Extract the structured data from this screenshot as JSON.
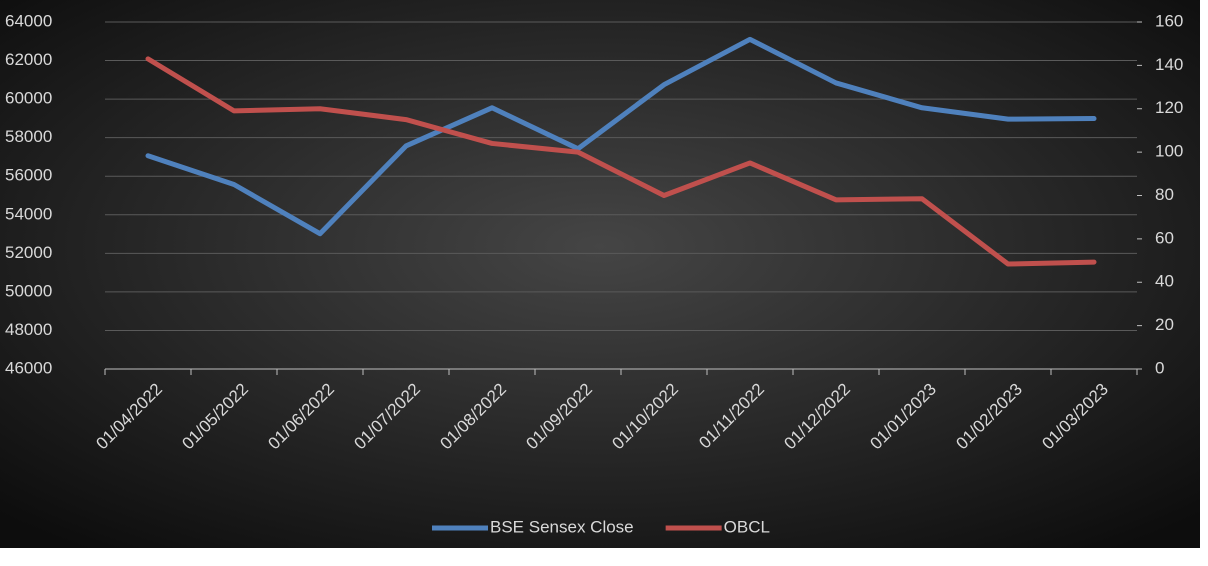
{
  "chart_data": {
    "type": "line",
    "categories": [
      "01/04/2022",
      "01/05/2022",
      "01/06/2022",
      "01/07/2022",
      "01/08/2022",
      "01/09/2022",
      "01/10/2022",
      "01/11/2022",
      "01/12/2022",
      "01/01/2023",
      "01/02/2023",
      "01/03/2023"
    ],
    "series": [
      {
        "name": "BSE Sensex Close",
        "color": "#4f81bd",
        "values": [
          57060,
          55570,
          53018,
          57570,
          59550,
          57426,
          60747,
          63100,
          60840,
          59550,
          58962,
          58991
        ]
      },
      {
        "name": "OBCL",
        "color": "#c0504d",
        "axis": "y2",
        "values": [
          143,
          119,
          120,
          115,
          104,
          100,
          80,
          95,
          78,
          78.5,
          48.4,
          49.3
        ]
      }
    ],
    "ylim": [
      46000,
      64000
    ],
    "yticks": [
      46000,
      48000,
      50000,
      52000,
      54000,
      56000,
      58000,
      60000,
      62000,
      64000
    ],
    "y2lim": [
      0,
      160
    ],
    "y2ticks": [
      0,
      20,
      40,
      60,
      80,
      100,
      120,
      140,
      160
    ],
    "grid": true,
    "legend": "bottom"
  }
}
